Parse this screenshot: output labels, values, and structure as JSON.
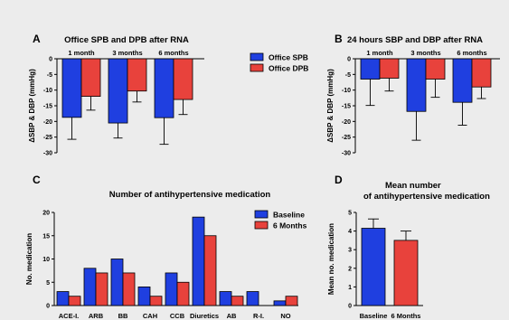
{
  "chart_data": [
    {
      "panel": "A",
      "type": "bar",
      "title": "Office SPB and DPB after RNA",
      "ylabel": "ΔSBP & DBP (mmHg)",
      "categories": [
        "1 month",
        "3 months",
        "6 months"
      ],
      "ylim": [
        -30,
        0
      ],
      "yticks": [
        0,
        -5,
        -10,
        -15,
        -20,
        -25,
        -30
      ],
      "series": [
        {
          "name": "Office SPB",
          "color": "#1f3fe0",
          "values": [
            -18.7,
            -20.5,
            -18.8
          ],
          "error": [
            7.0,
            4.8,
            8.5
          ]
        },
        {
          "name": "Office DPB",
          "color": "#e8423c",
          "values": [
            -12.0,
            -10.3,
            -13.0
          ],
          "error": [
            4.4,
            3.5,
            4.8
          ]
        }
      ],
      "legend": "right"
    },
    {
      "panel": "B",
      "type": "bar",
      "title": "24 hours SBP and DBP after RNA",
      "ylabel": "ΔSBP & DBP (mmHg)",
      "categories": [
        "1 month",
        "3 months",
        "6 months"
      ],
      "ylim": [
        -30,
        0
      ],
      "yticks": [
        0,
        -5,
        -10,
        -15,
        -20,
        -25,
        -30
      ],
      "series": [
        {
          "name": "",
          "color": "#1f3fe0",
          "values": [
            -6.5,
            -16.8,
            -13.9
          ],
          "error": [
            8.4,
            9.2,
            7.3
          ]
        },
        {
          "name": "",
          "color": "#e8423c",
          "values": [
            -6.2,
            -6.5,
            -9.0
          ],
          "error": [
            4.1,
            5.8,
            3.7
          ]
        }
      ]
    },
    {
      "panel": "C",
      "type": "bar",
      "title": "Number of antihypertensive medication",
      "ylabel": "No. medication",
      "categories": [
        "ACE-I.",
        "ARB",
        "BB",
        "CAH",
        "CCB",
        "Diuretics",
        "AB",
        "R-I.",
        "NO"
      ],
      "ylim": [
        0,
        20
      ],
      "yticks": [
        0,
        5,
        10,
        15,
        20
      ],
      "series": [
        {
          "name": "Baseline",
          "color": "#1f3fe0",
          "values": [
            3,
            8,
            10,
            4,
            7,
            19,
            3,
            3,
            1
          ]
        },
        {
          "name": "6 Months",
          "color": "#e8423c",
          "values": [
            2,
            7,
            7,
            2,
            5,
            15,
            2,
            0,
            2
          ]
        }
      ],
      "legend": "top-right"
    },
    {
      "panel": "D",
      "type": "bar",
      "title": "Mean number",
      "subtitle": "of antihypertensive medication",
      "ylabel": "Mean no. medication",
      "categories": [
        "Baseline",
        "6 Months"
      ],
      "ylim": [
        0,
        5
      ],
      "yticks": [
        0,
        1,
        2,
        3,
        4,
        5
      ],
      "series": [
        {
          "name": "",
          "colors": [
            "#1f3fe0",
            "#e8423c"
          ],
          "values": [
            4.15,
            3.5
          ],
          "error": [
            0.5,
            0.5
          ]
        }
      ]
    }
  ]
}
